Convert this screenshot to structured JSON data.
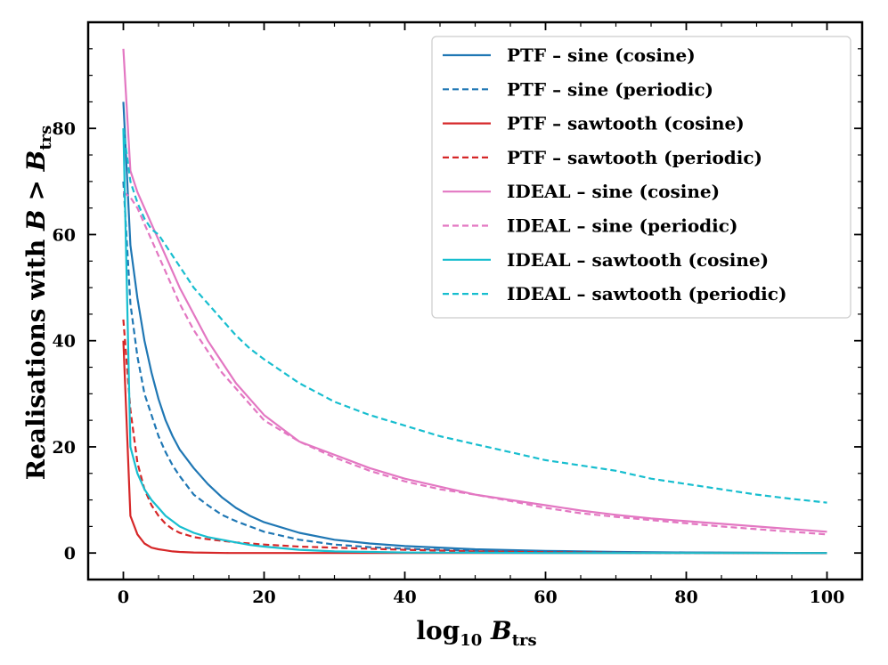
{
  "chart_data": {
    "type": "line",
    "title": "",
    "xlabel": {
      "main": "log",
      "sub1": "10",
      "var": " B",
      "sub2": "trs"
    },
    "ylabel": {
      "main": "Realisations with ",
      "var": "B > B",
      "sub": "trs"
    },
    "xlim": [
      -5,
      105
    ],
    "ylim": [
      -5,
      100
    ],
    "xticks": [
      0,
      20,
      40,
      60,
      80,
      100
    ],
    "yticks": [
      0,
      20,
      40,
      60,
      80
    ],
    "legend_position": "top-right",
    "grid": false,
    "series": [
      {
        "name": "PTF – sine (cosine)",
        "color": "#1f77b4",
        "dash": "solid",
        "x": [
          0,
          1,
          2,
          3,
          4,
          5,
          6,
          7,
          8,
          10,
          12,
          14,
          16,
          18,
          20,
          25,
          30,
          35,
          40,
          50,
          60,
          70,
          80,
          90,
          100
        ],
        "y": [
          85,
          58,
          48,
          40,
          34,
          29,
          25,
          22,
          19.5,
          16,
          13,
          10.5,
          8.5,
          7,
          5.8,
          3.8,
          2.5,
          1.8,
          1.3,
          0.7,
          0.4,
          0.2,
          0.1,
          0.05,
          0
        ]
      },
      {
        "name": "PTF – sine (periodic)",
        "color": "#1f77b4",
        "dash": "dashed",
        "x": [
          0,
          1,
          2,
          3,
          4,
          5,
          6,
          7,
          8,
          10,
          12,
          14,
          16,
          18,
          20,
          25,
          30,
          35,
          40,
          50,
          60,
          70,
          80,
          90,
          100
        ],
        "y": [
          70,
          47,
          37,
          30,
          26,
          22,
          19,
          16.5,
          14.5,
          11,
          9,
          7.2,
          6,
          5,
          4,
          2.5,
          1.6,
          1.1,
          0.8,
          0.4,
          0.2,
          0.1,
          0.05,
          0,
          0
        ]
      },
      {
        "name": "PTF – sawtooth (cosine)",
        "color": "#d62728",
        "dash": "solid",
        "x": [
          0,
          1,
          2,
          3,
          4,
          5,
          6,
          7,
          8,
          10,
          15,
          20,
          30,
          40,
          60,
          80,
          100
        ],
        "y": [
          40,
          7,
          3.5,
          1.8,
          1.0,
          0.7,
          0.5,
          0.3,
          0.2,
          0.1,
          0,
          0,
          0,
          0,
          0,
          0,
          0
        ]
      },
      {
        "name": "PTF – sawtooth (periodic)",
        "color": "#d62728",
        "dash": "dashed",
        "x": [
          0,
          1,
          2,
          3,
          4,
          5,
          6,
          7,
          8,
          10,
          12,
          14,
          16,
          18,
          20,
          25,
          30,
          35,
          40,
          50,
          60,
          70,
          80,
          90,
          100
        ],
        "y": [
          44,
          27,
          17,
          12,
          9,
          7,
          5.5,
          4.5,
          3.8,
          3.0,
          2.6,
          2.3,
          2.0,
          1.8,
          1.6,
          1.2,
          1.0,
          0.8,
          0.6,
          0.3,
          0.15,
          0.05,
          0,
          0,
          0
        ]
      },
      {
        "name": "IDEAL – sine (cosine)",
        "color": "#e377c2",
        "dash": "solid",
        "x": [
          0,
          1,
          2,
          3,
          4,
          5,
          6,
          7,
          8,
          10,
          12,
          14,
          16,
          18,
          20,
          25,
          30,
          35,
          40,
          45,
          50,
          55,
          60,
          65,
          70,
          75,
          80,
          85,
          90,
          95,
          100
        ],
        "y": [
          95,
          72,
          68,
          65,
          62,
          59,
          56,
          53,
          50,
          45,
          40,
          36,
          32,
          29,
          26,
          21,
          18.5,
          16,
          14,
          12.5,
          11,
          10,
          9,
          8,
          7.2,
          6.5,
          6,
          5.5,
          5,
          4.5,
          4
        ]
      },
      {
        "name": "IDEAL – sine (periodic)",
        "color": "#e377c2",
        "dash": "dashed",
        "x": [
          0,
          1,
          2,
          3,
          4,
          5,
          6,
          7,
          8,
          10,
          12,
          14,
          16,
          18,
          20,
          25,
          30,
          35,
          40,
          45,
          50,
          55,
          60,
          65,
          70,
          75,
          80,
          85,
          90,
          95,
          100
        ],
        "y": [
          68,
          67,
          65,
          62,
          59,
          56,
          53,
          50,
          47,
          42,
          38,
          34,
          31,
          28,
          25,
          21,
          18,
          15.5,
          13.5,
          12,
          11,
          9.8,
          8.5,
          7.5,
          6.8,
          6.2,
          5.6,
          5.0,
          4.5,
          4.0,
          3.5
        ]
      },
      {
        "name": "IDEAL – sawtooth (cosine)",
        "color": "#17becf",
        "dash": "solid",
        "x": [
          0,
          1,
          2,
          3,
          4,
          5,
          6,
          7,
          8,
          10,
          12,
          14,
          16,
          18,
          20,
          25,
          30,
          35,
          40,
          50,
          60,
          70,
          80,
          90,
          100
        ],
        "y": [
          80,
          20,
          15,
          12,
          10,
          8.5,
          7,
          6,
          5,
          3.8,
          3.0,
          2.5,
          2.0,
          1.5,
          1.2,
          0.6,
          0.3,
          0.2,
          0.1,
          0.05,
          0,
          0,
          0,
          0,
          0
        ]
      },
      {
        "name": "IDEAL – sawtooth (periodic)",
        "color": "#17becf",
        "dash": "dashed",
        "x": [
          0,
          1,
          2,
          3,
          4,
          5,
          6,
          8,
          10,
          12,
          14,
          16,
          18,
          20,
          25,
          30,
          35,
          40,
          45,
          50,
          55,
          60,
          65,
          70,
          75,
          80,
          85,
          90,
          95,
          100
        ],
        "y": [
          80,
          70,
          66,
          63,
          61,
          60,
          58,
          54,
          50,
          47,
          44,
          41,
          38.5,
          36.5,
          32,
          28.5,
          26,
          24,
          22,
          20.5,
          19,
          17.5,
          16.5,
          15.5,
          14,
          13,
          12,
          11,
          10.2,
          9.5
        ]
      }
    ]
  }
}
